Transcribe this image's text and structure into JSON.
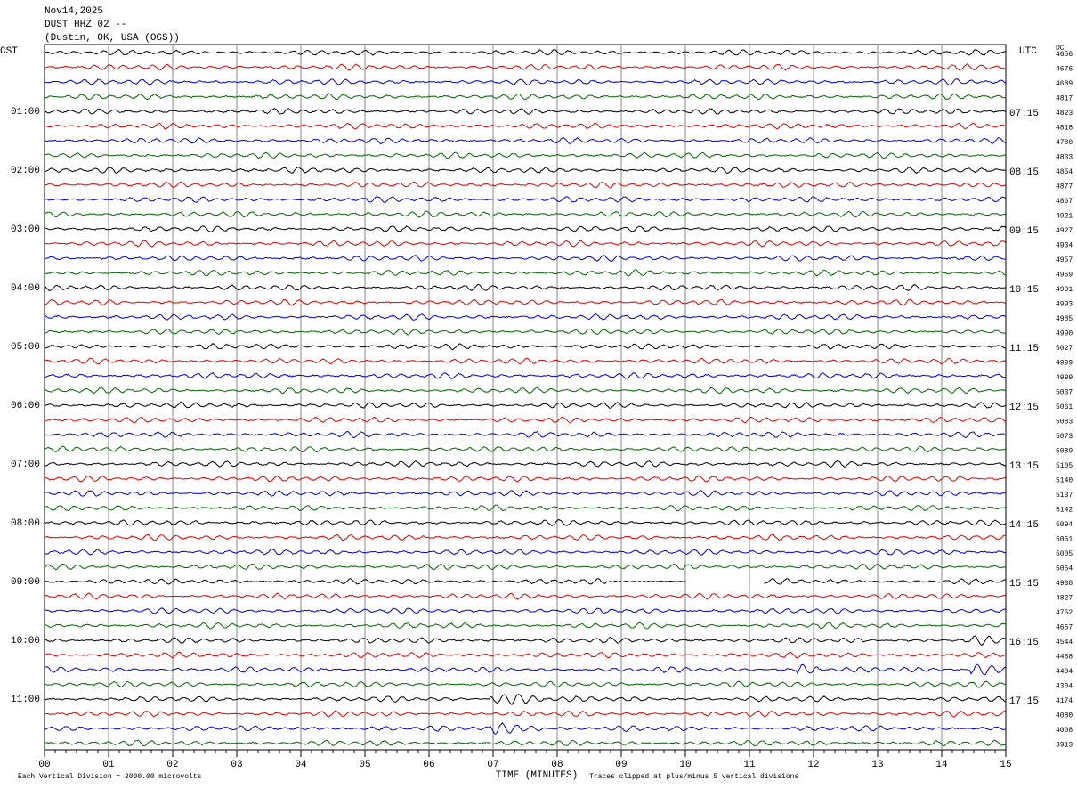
{
  "header": {
    "date": "Nov14,2025",
    "station": "DUST HHZ 02 --",
    "location": "(Dustin, OK, USA  (OGS))"
  },
  "left_zone": "CST",
  "right_zone": "UTC",
  "dc_heading": "DC",
  "left_times": [
    "01:00",
    "02:00",
    "03:00",
    "04:00",
    "05:00",
    "06:00",
    "07:00",
    "08:00",
    "09:00",
    "10:00",
    "11:00"
  ],
  "right_times": [
    "07:15",
    "08:15",
    "09:15",
    "10:15",
    "11:15",
    "12:15",
    "13:15",
    "14:15",
    "15:15",
    "16:15",
    "17:15"
  ],
  "dc_values": [
    4656,
    4676,
    4689,
    4817,
    4823,
    4818,
    4780,
    4833,
    4854,
    4877,
    4867,
    4921,
    4927,
    4934,
    4957,
    4969,
    4991,
    4993,
    4985,
    4990,
    5027,
    4999,
    4999,
    5037,
    5061,
    5083,
    5073,
    5089,
    5105,
    5140,
    5137,
    5142,
    5094,
    5061,
    5005,
    5054,
    4938,
    4827,
    4752,
    4657,
    4544,
    4468,
    4404,
    4304,
    4174,
    4080,
    4008,
    3913
  ],
  "x_ticks": [
    "00",
    "01",
    "02",
    "03",
    "04",
    "05",
    "06",
    "07",
    "08",
    "09",
    "10",
    "11",
    "12",
    "13",
    "14",
    "15"
  ],
  "x_label": "TIME (MINUTES)",
  "footer_left": "Each Vertical Division = 2000.00 microvolts",
  "footer_right": "Traces clipped at plus/minus 5 vertical divisions"
}
